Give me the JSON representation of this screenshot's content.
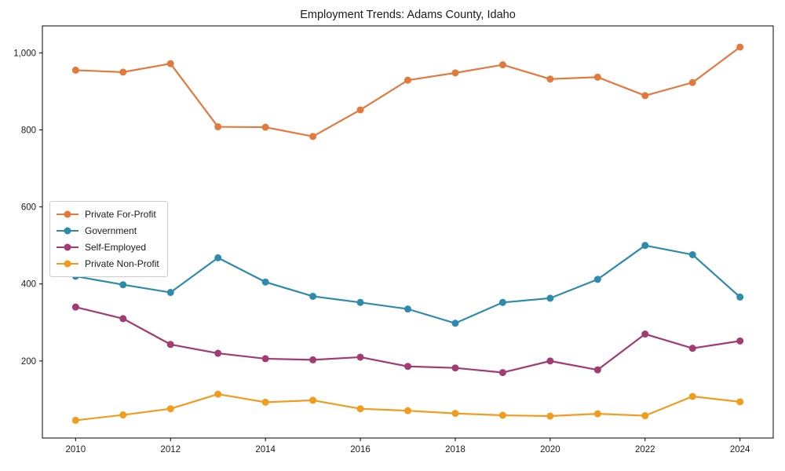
{
  "chart_data": {
    "type": "line",
    "title": "Employment Trends: Adams County, Idaho",
    "xlabel": "",
    "ylabel": "",
    "x": [
      2010,
      2011,
      2012,
      2013,
      2014,
      2015,
      2016,
      2017,
      2018,
      2019,
      2020,
      2021,
      2022,
      2023,
      2024
    ],
    "xlim": [
      2009.3,
      2024.7
    ],
    "ylim": [
      0,
      1070
    ],
    "grid": false,
    "legend_position": "center left",
    "x_ticks": [
      {
        "value": 2010,
        "label": "2010"
      },
      {
        "value": 2012,
        "label": "2012"
      },
      {
        "value": 2014,
        "label": "2014"
      },
      {
        "value": 2016,
        "label": "2016"
      },
      {
        "value": 2018,
        "label": "2018"
      },
      {
        "value": 2020,
        "label": "2020"
      },
      {
        "value": 2022,
        "label": "2022"
      },
      {
        "value": 2024,
        "label": "2024"
      }
    ],
    "y_ticks": [
      {
        "value": 200,
        "label": "200"
      },
      {
        "value": 400,
        "label": "400"
      },
      {
        "value": 600,
        "label": "600"
      },
      {
        "value": 800,
        "label": "800"
      },
      {
        "value": 1000,
        "label": "1,000"
      }
    ],
    "series": [
      {
        "name": "Private For-Profit",
        "color": "#e2793e",
        "values": [
          955,
          950,
          972,
          808,
          807,
          783,
          852,
          929,
          948,
          969,
          932,
          937,
          889,
          923,
          1015
        ]
      },
      {
        "name": "Government",
        "color": "#2e8bab",
        "values": [
          420,
          398,
          378,
          468,
          405,
          368,
          352,
          335,
          298,
          352,
          363,
          412,
          500,
          476,
          366
        ]
      },
      {
        "name": "Self-Employed",
        "color": "#a23b72",
        "values": [
          340,
          310,
          243,
          220,
          206,
          203,
          210,
          186,
          182,
          170,
          200,
          177,
          270,
          233,
          252
        ]
      },
      {
        "name": "Private Non-Profit",
        "color": "#f09d1f",
        "values": [
          46,
          60,
          76,
          114,
          93,
          98,
          76,
          71,
          64,
          59,
          57,
          63,
          58,
          108,
          94
        ]
      }
    ]
  }
}
